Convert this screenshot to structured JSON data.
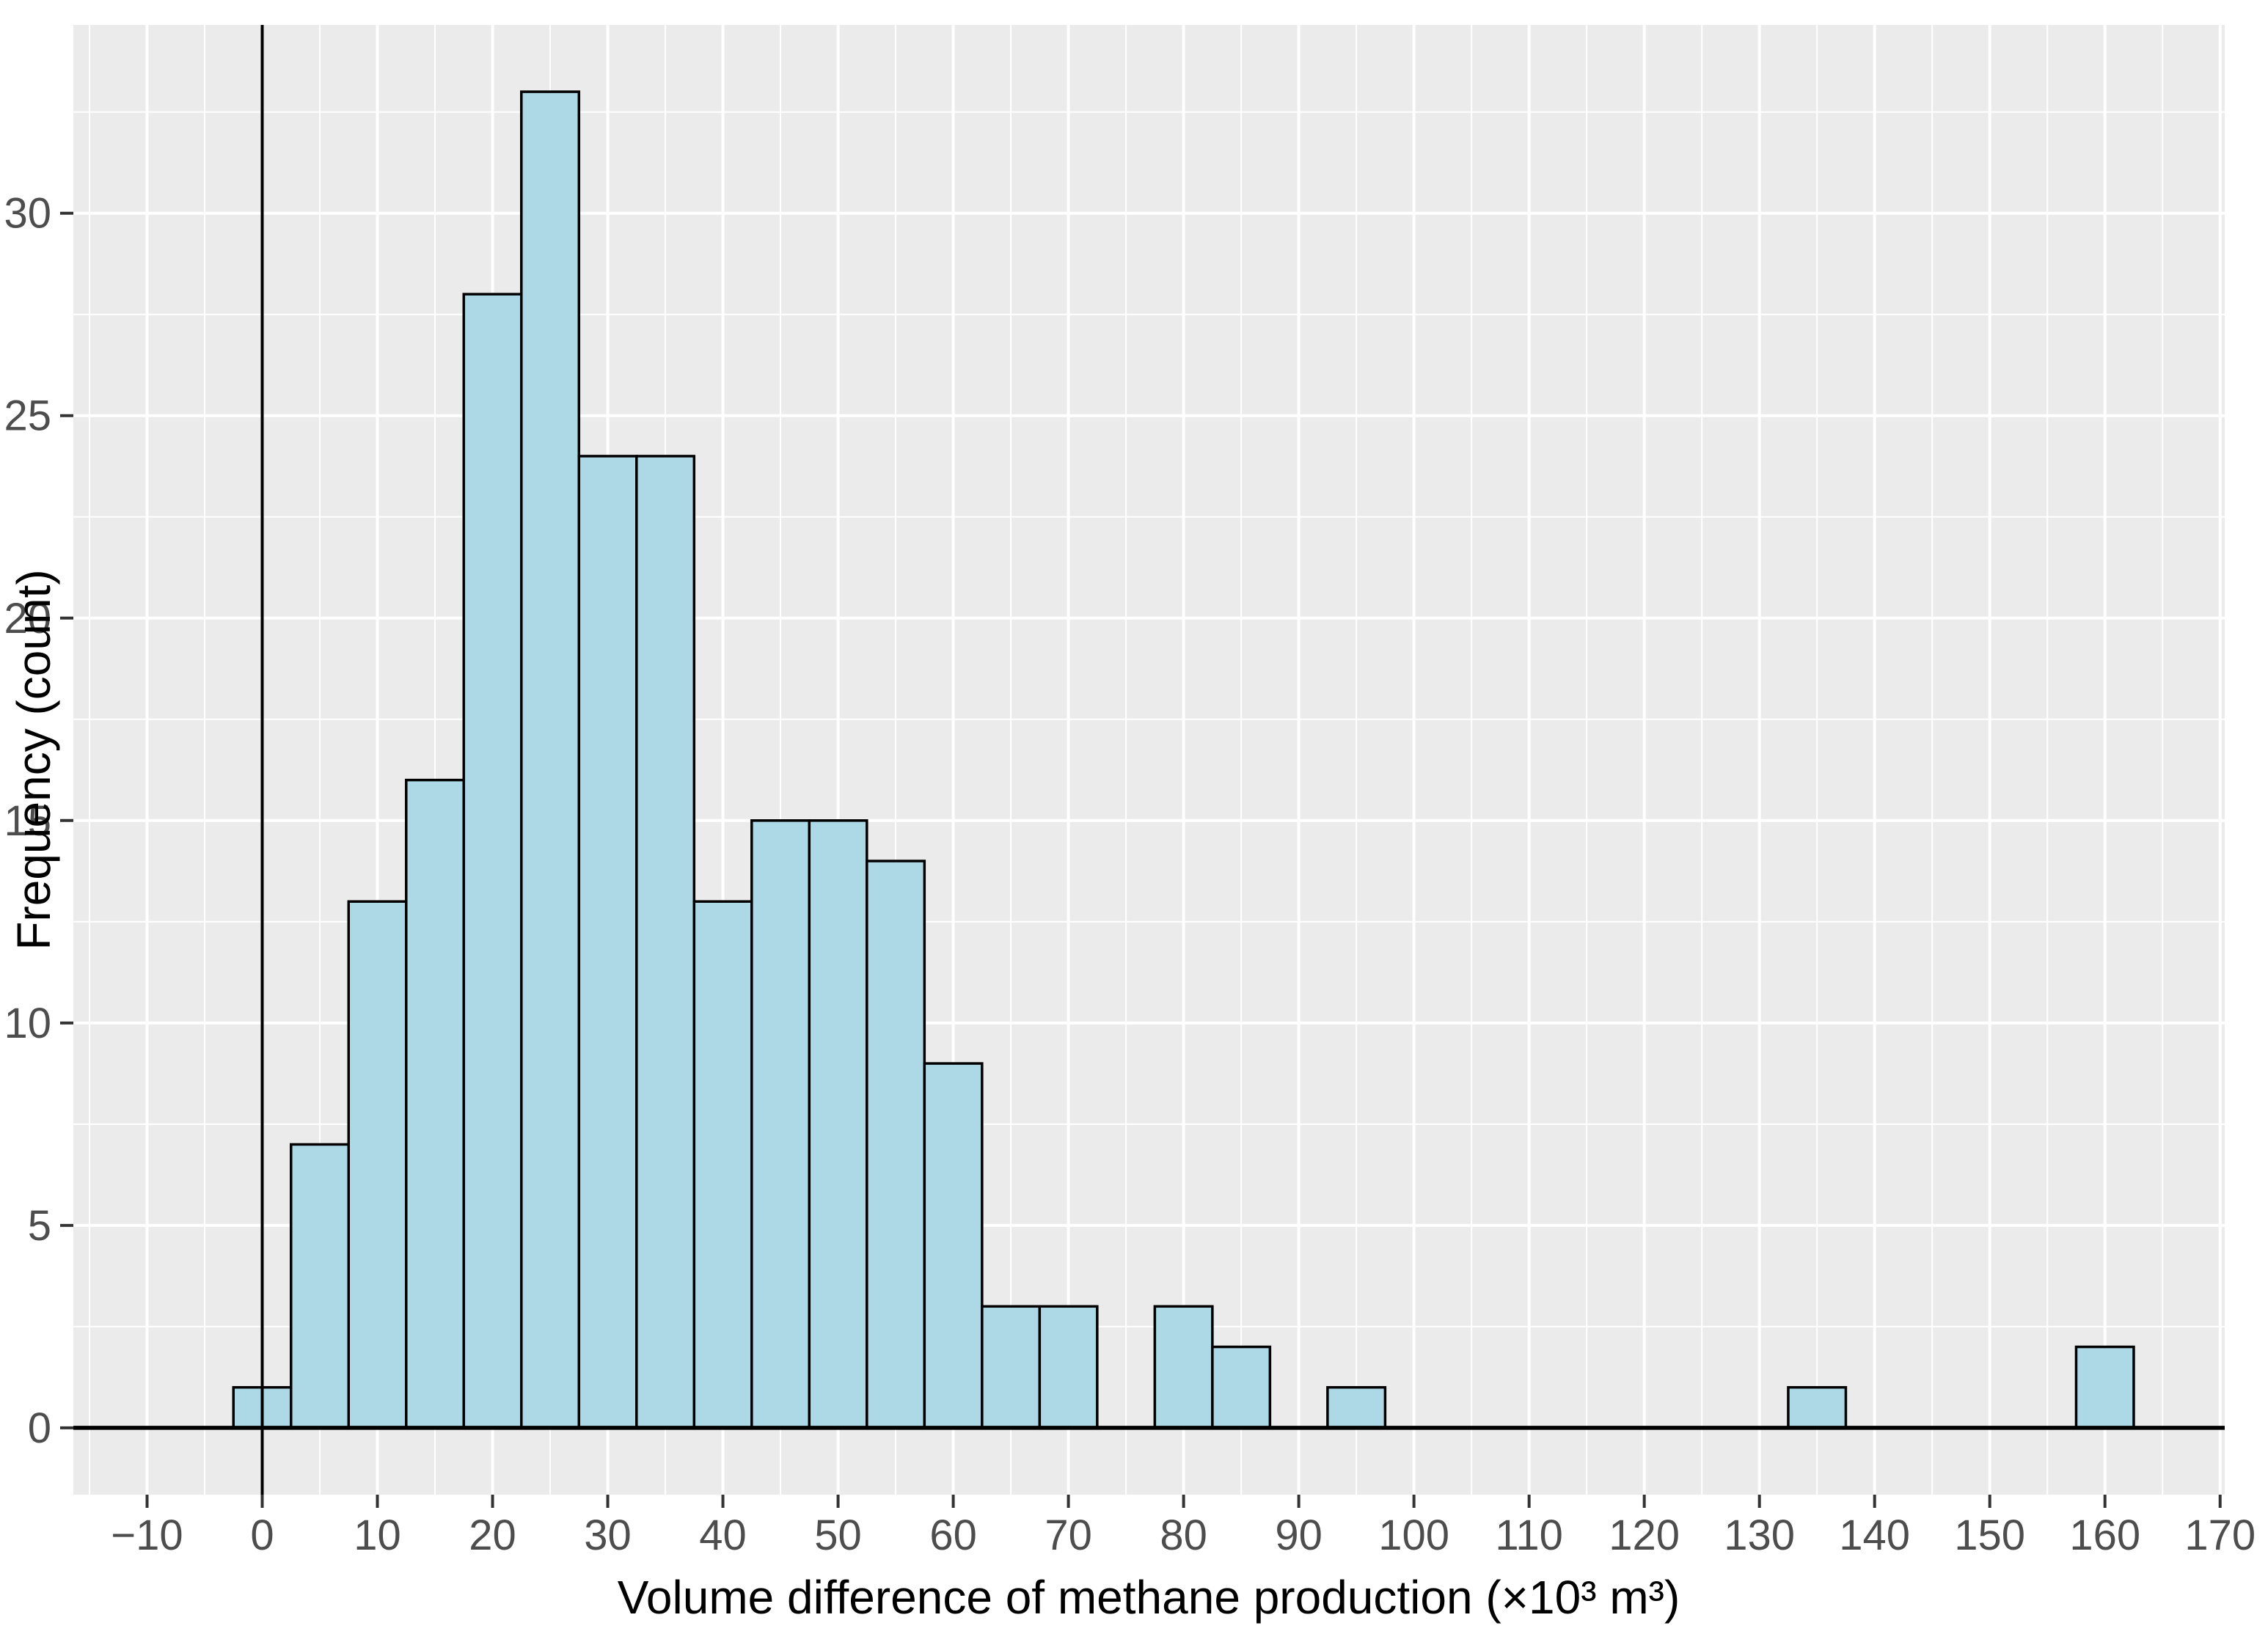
{
  "figure": {
    "x_axis_title": "Volume difference of methane production (×10³ m³)",
    "y_axis_title": "Frequency (count)"
  },
  "chart_data": {
    "type": "bar",
    "subtype": "histogram",
    "title": "",
    "xlabel": "Volume difference of methane production (×10³ m³)",
    "ylabel": "Frequency (count)",
    "bin_width": 5,
    "bin_centers": [
      0,
      5,
      10,
      15,
      20,
      25,
      30,
      35,
      40,
      45,
      50,
      55,
      60,
      65,
      70,
      75,
      80,
      85,
      90,
      95,
      100,
      105,
      110,
      115,
      120,
      125,
      130,
      135,
      140,
      145,
      150,
      155,
      160
    ],
    "counts": [
      1,
      7,
      13,
      16,
      28,
      33,
      24,
      24,
      13,
      15,
      15,
      14,
      9,
      3,
      3,
      0,
      3,
      2,
      0,
      1,
      0,
      0,
      0,
      0,
      0,
      0,
      0,
      1,
      0,
      0,
      0,
      0,
      2
    ],
    "x_tick_values": [
      -10,
      0,
      10,
      20,
      30,
      40,
      50,
      60,
      70,
      80,
      90,
      100,
      110,
      120,
      130,
      140,
      150,
      160,
      170
    ],
    "x_tick_labels": [
      "−10",
      "0",
      "10",
      "20",
      "30",
      "40",
      "50",
      "60",
      "70",
      "80",
      "90",
      "100",
      "110",
      "120",
      "130",
      "140",
      "150",
      "160",
      "170"
    ],
    "y_tick_values": [
      0,
      5,
      10,
      15,
      20,
      25,
      30
    ],
    "y_tick_labels": [
      "0",
      "5",
      "10",
      "15",
      "20",
      "25",
      "30"
    ],
    "xlim": [
      -16.4,
      170.4
    ],
    "ylim": [
      -1.65,
      34.65
    ],
    "reference_lines": {
      "vline_x": 0,
      "hline_y": 0
    },
    "grid": {
      "major": true,
      "minor": true
    },
    "legend_position": "none",
    "colors": {
      "bar_fill": "#ADD8E6",
      "bar_stroke": "#000000",
      "panel_background": "#EBEBEB",
      "gridline": "#FFFFFF",
      "tick_mark": "#333333",
      "tick_label": "#4D4D4D",
      "axis_title": "#000000",
      "reference_line": "#000000",
      "figure_background": "#FFFFFF"
    }
  }
}
